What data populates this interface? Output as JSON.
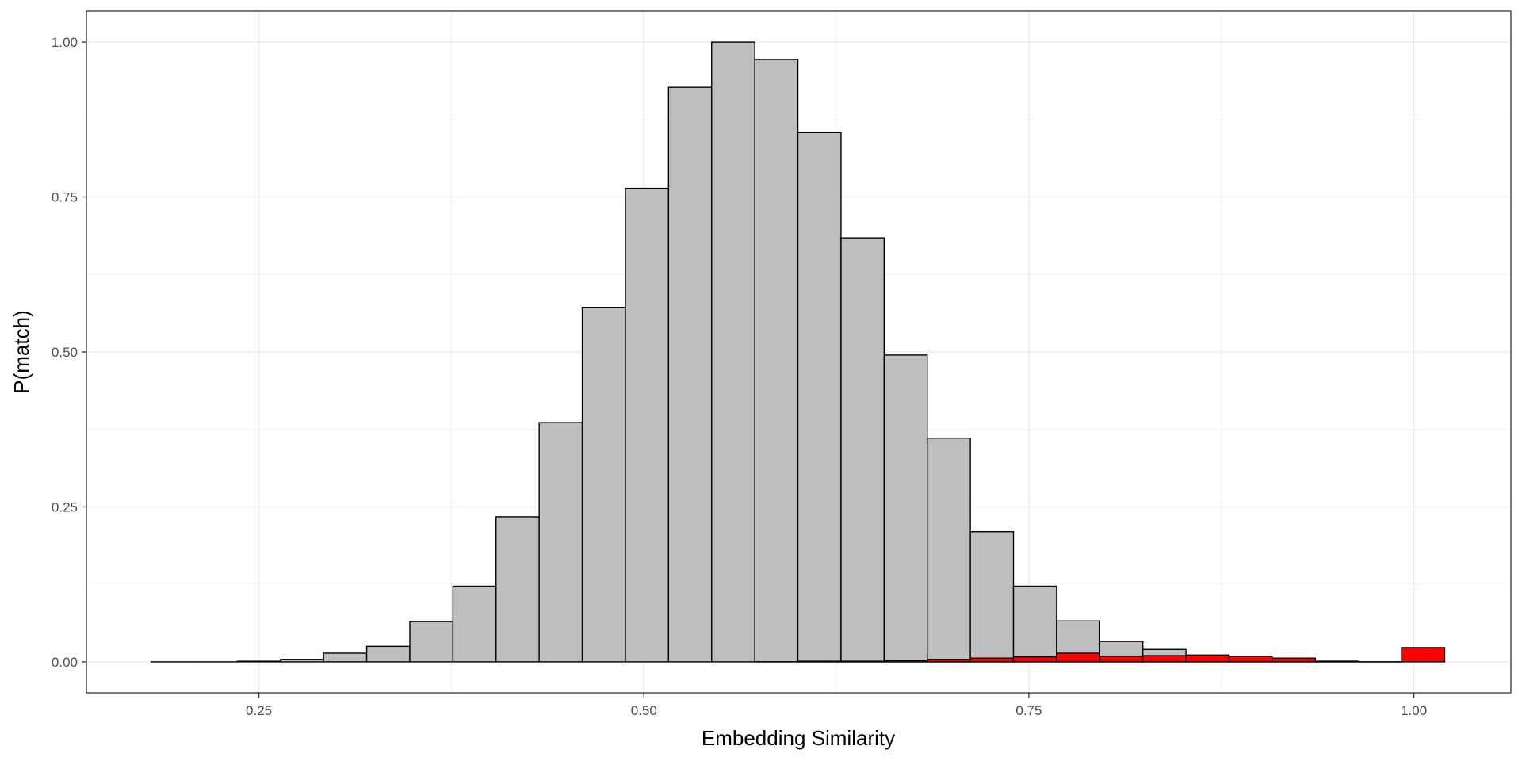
{
  "chart_data": {
    "type": "bar",
    "subtype": "histogram",
    "xlabel": "Embedding Similarity",
    "ylabel": "P(match)",
    "xlim": [
      0.138,
      1.063
    ],
    "ylim": [
      -0.05,
      1.05
    ],
    "x_ticks": [
      0.25,
      0.5,
      0.75,
      1.0
    ],
    "x_tick_labels": [
      "0.25",
      "0.50",
      "0.75",
      "1.00"
    ],
    "y_ticks": [
      0.0,
      0.25,
      0.5,
      0.75,
      1.0
    ],
    "y_tick_labels": [
      "0.00",
      "0.25",
      "0.50",
      "0.75",
      "1.00"
    ],
    "grid": true,
    "theme": "bw",
    "bin_width": 0.028,
    "series": [
      {
        "fill": "#bebebe",
        "outline": "#000000",
        "bins": [
          {
            "x": 0.194,
            "value": 0.0
          },
          {
            "x": 0.222,
            "value": 0.0
          },
          {
            "x": 0.25,
            "value": 0.001
          },
          {
            "x": 0.278,
            "value": 0.004
          },
          {
            "x": 0.306,
            "value": 0.014
          },
          {
            "x": 0.334,
            "value": 0.025
          },
          {
            "x": 0.362,
            "value": 0.065
          },
          {
            "x": 0.39,
            "value": 0.122
          },
          {
            "x": 0.418,
            "value": 0.234
          },
          {
            "x": 0.446,
            "value": 0.386
          },
          {
            "x": 0.474,
            "value": 0.572
          },
          {
            "x": 0.502,
            "value": 0.764
          },
          {
            "x": 0.53,
            "value": 0.927
          },
          {
            "x": 0.558,
            "value": 1.0
          },
          {
            "x": 0.586,
            "value": 0.972
          },
          {
            "x": 0.614,
            "value": 0.854
          },
          {
            "x": 0.642,
            "value": 0.684
          },
          {
            "x": 0.67,
            "value": 0.495
          },
          {
            "x": 0.698,
            "value": 0.361
          },
          {
            "x": 0.726,
            "value": 0.21
          },
          {
            "x": 0.754,
            "value": 0.122
          },
          {
            "x": 0.782,
            "value": 0.066
          },
          {
            "x": 0.81,
            "value": 0.033
          },
          {
            "x": 0.838,
            "value": 0.02
          },
          {
            "x": 0.866,
            "value": 0.009
          },
          {
            "x": 0.894,
            "value": 0.005
          },
          {
            "x": 0.922,
            "value": 0.003
          },
          {
            "x": 0.95,
            "value": 0.001
          },
          {
            "x": 0.978,
            "value": 0.0
          }
        ]
      },
      {
        "fill": "#ff0000",
        "outline": "#000000",
        "bins": [
          {
            "x": 0.586,
            "value": 0.0
          },
          {
            "x": 0.614,
            "value": 0.001
          },
          {
            "x": 0.642,
            "value": 0.001
          },
          {
            "x": 0.67,
            "value": 0.002
          },
          {
            "x": 0.698,
            "value": 0.004
          },
          {
            "x": 0.726,
            "value": 0.006
          },
          {
            "x": 0.754,
            "value": 0.008
          },
          {
            "x": 0.782,
            "value": 0.014
          },
          {
            "x": 0.81,
            "value": 0.009
          },
          {
            "x": 0.838,
            "value": 0.01
          },
          {
            "x": 0.866,
            "value": 0.011
          },
          {
            "x": 0.894,
            "value": 0.009
          },
          {
            "x": 0.922,
            "value": 0.006
          },
          {
            "x": 0.95,
            "value": 0.001
          },
          {
            "x": 0.978,
            "value": 0.0
          },
          {
            "x": 1.006,
            "value": 0.023
          }
        ]
      }
    ]
  }
}
